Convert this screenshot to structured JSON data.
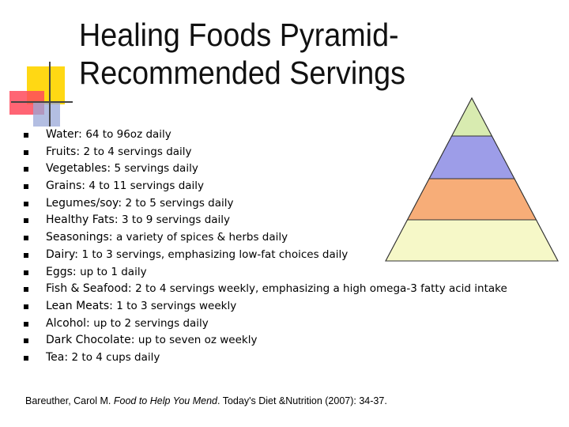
{
  "title": {
    "line1": "Healing Foods Pyramid-",
    "line2": "Recommended Servings"
  },
  "items": [
    {
      "label": "Water:",
      "value": "64 to 96oz daily"
    },
    {
      "label": "Fruits:",
      "value": "2 to 4 servings daily"
    },
    {
      "label": "Vegetables:",
      "value": "5 servings daily"
    },
    {
      "label": "Grains:",
      "value": "4 to 11 servings daily"
    },
    {
      "label": "Legumes/soy:",
      "value": "2 to 5 servings daily"
    },
    {
      "label": "Healthy Fats:",
      "value": "3 to 9 servings daily"
    },
    {
      "label": "Seasonings:",
      "value": "a variety of spices & herbs daily"
    },
    {
      "label": "Dairy:",
      "value": "1 to 3 servings, emphasizing low-fat choices daily"
    },
    {
      "label": "Eggs:",
      "value": "up to 1 daily"
    },
    {
      "label": "Fish & Seafood:",
      "value": "2 to 4 servings weekly, emphasizing a high omega-3 fatty acid intake"
    },
    {
      "label": "Lean Meats:",
      "value": "1 to 3 servings weekly"
    },
    {
      "label": "Alcohol:",
      "value": "up to 2 servings daily"
    },
    {
      "label": "Dark Chocolate:",
      "value": "up to seven oz weekly"
    },
    {
      "label": "Tea:",
      "value": "2 to 4 cups daily"
    }
  ],
  "pyramid": {
    "colors": [
      "#d8ebb0",
      "#9d9de8",
      "#f7ad78",
      "#f6f8c8"
    ]
  },
  "citation": {
    "author": "Bareuther, Carol M.",
    "book": "Food to Help You Mend",
    "rest": "Today's Diet &Nutrition (2007): 34-37",
    "end": "."
  }
}
